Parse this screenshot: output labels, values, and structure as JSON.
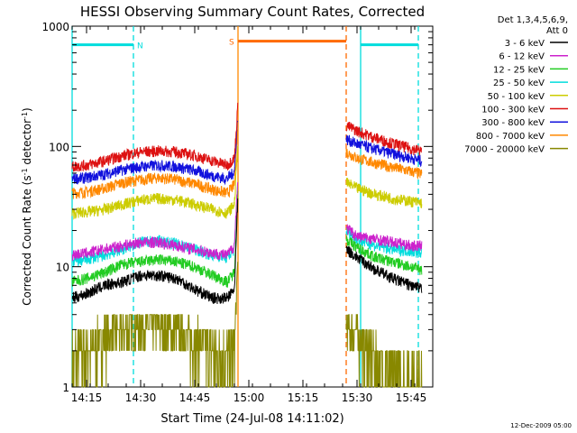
{
  "chart_data": {
    "type": "line",
    "title": "HESSI Observing Summary Count Rates, Corrected",
    "xlabel": "Start Time (24-Jul-08 14:11:02)",
    "ylabel_parts": [
      "Corrected Count Rate (s",
      "-1",
      " detector",
      "-1",
      ")"
    ],
    "y_scale": "log",
    "ylim": [
      1,
      1000
    ],
    "xlim": [
      "14:11",
      "15:51"
    ],
    "x_ticks": [
      "14:15",
      "14:30",
      "14:45",
      "15:00",
      "15:15",
      "15:30",
      "15:45"
    ],
    "y_ticks": [
      "1",
      "10",
      "100",
      "1000"
    ],
    "timestamp": "12-Dec-2009 05:00",
    "legend": {
      "placement": "right",
      "header_lines": [
        "Det 1,3,4,5,6,9,",
        "Att 0"
      ]
    },
    "gaps": [
      {
        "start": "14:57",
        "end": "15:27"
      }
    ],
    "series": [
      {
        "name": "3 - 6 keV",
        "color": "#000000",
        "points": [
          [
            "14:11",
            5.5
          ],
          [
            "14:15",
            6
          ],
          [
            "14:20",
            7
          ],
          [
            "14:25",
            7.5
          ],
          [
            "14:30",
            8.5
          ],
          [
            "14:35",
            8.5
          ],
          [
            "14:40",
            8
          ],
          [
            "14:45",
            6.5
          ],
          [
            "14:50",
            5.5
          ],
          [
            "14:54",
            5.5
          ],
          [
            "14:56",
            6.5
          ],
          [
            "14:57",
            40
          ],
          [
            "15:27",
            14
          ],
          [
            "15:30",
            12
          ],
          [
            "15:35",
            9.5
          ],
          [
            "15:40",
            8
          ],
          [
            "15:45",
            7
          ],
          [
            "15:48",
            6.5
          ]
        ]
      },
      {
        "name": "6 - 12 keV",
        "color": "#cc22cc",
        "points": [
          [
            "14:11",
            12.5
          ],
          [
            "14:15",
            13
          ],
          [
            "14:20",
            14
          ],
          [
            "14:25",
            15
          ],
          [
            "14:30",
            16
          ],
          [
            "14:35",
            16
          ],
          [
            "14:40",
            15
          ],
          [
            "14:45",
            14
          ],
          [
            "14:50",
            13
          ],
          [
            "14:54",
            12.5
          ],
          [
            "14:56",
            15
          ],
          [
            "14:57",
            60
          ],
          [
            "15:27",
            21
          ],
          [
            "15:30",
            18
          ],
          [
            "15:35",
            17
          ],
          [
            "15:40",
            16
          ],
          [
            "15:45",
            15
          ],
          [
            "15:48",
            15
          ]
        ]
      },
      {
        "name": "12 - 25 keV",
        "color": "#22cc22",
        "points": [
          [
            "14:11",
            7.5
          ],
          [
            "14:15",
            8
          ],
          [
            "14:20",
            9
          ],
          [
            "14:25",
            10.5
          ],
          [
            "14:30",
            11
          ],
          [
            "14:35",
            11.5
          ],
          [
            "14:40",
            11
          ],
          [
            "14:45",
            10
          ],
          [
            "14:50",
            8.5
          ],
          [
            "14:54",
            7.5
          ],
          [
            "14:56",
            9
          ],
          [
            "14:57",
            50
          ],
          [
            "15:27",
            17
          ],
          [
            "15:30",
            14.5
          ],
          [
            "15:35",
            12
          ],
          [
            "15:40",
            11
          ],
          [
            "15:45",
            10
          ],
          [
            "15:48",
            9.5
          ]
        ]
      },
      {
        "name": "25 - 50 keV",
        "color": "#00dddd",
        "points": [
          [
            "14:11",
            11
          ],
          [
            "14:15",
            11.5
          ],
          [
            "14:20",
            12.5
          ],
          [
            "14:25",
            14
          ],
          [
            "14:30",
            16
          ],
          [
            "14:35",
            16.5
          ],
          [
            "14:40",
            15.5
          ],
          [
            "14:45",
            14
          ],
          [
            "14:50",
            12.5
          ],
          [
            "14:54",
            12
          ],
          [
            "14:56",
            14
          ],
          [
            "14:57",
            55
          ],
          [
            "15:27",
            20
          ],
          [
            "15:30",
            17
          ],
          [
            "15:35",
            15
          ],
          [
            "15:40",
            14
          ],
          [
            "15:45",
            13.5
          ],
          [
            "15:48",
            13
          ]
        ]
      },
      {
        "name": "50 - 100 keV",
        "color": "#cccc00",
        "points": [
          [
            "14:11",
            28
          ],
          [
            "14:15",
            28.5
          ],
          [
            "14:20",
            30
          ],
          [
            "14:25",
            33
          ],
          [
            "14:30",
            36
          ],
          [
            "14:35",
            37
          ],
          [
            "14:40",
            36
          ],
          [
            "14:45",
            33
          ],
          [
            "14:50",
            30
          ],
          [
            "14:54",
            28
          ],
          [
            "14:56",
            33
          ],
          [
            "14:57",
            110
          ],
          [
            "15:27",
            50
          ],
          [
            "15:30",
            45
          ],
          [
            "15:35",
            40
          ],
          [
            "15:40",
            37
          ],
          [
            "15:45",
            35
          ],
          [
            "15:48",
            34
          ]
        ]
      },
      {
        "name": "100 - 300 keV",
        "color": "#dd1111",
        "points": [
          [
            "14:11",
            68
          ],
          [
            "14:15",
            70
          ],
          [
            "14:20",
            76
          ],
          [
            "14:25",
            84
          ],
          [
            "14:30",
            90
          ],
          [
            "14:35",
            92
          ],
          [
            "14:40",
            90
          ],
          [
            "14:45",
            84
          ],
          [
            "14:50",
            76
          ],
          [
            "14:54",
            70
          ],
          [
            "14:56",
            80
          ],
          [
            "14:57",
            230
          ],
          [
            "15:27",
            150
          ],
          [
            "15:30",
            135
          ],
          [
            "15:35",
            118
          ],
          [
            "15:40",
            106
          ],
          [
            "15:45",
            96
          ],
          [
            "15:48",
            92
          ]
        ]
      },
      {
        "name": "300 - 800 keV",
        "color": "#1111dd",
        "points": [
          [
            "14:11",
            54
          ],
          [
            "14:15",
            55
          ],
          [
            "14:20",
            59
          ],
          [
            "14:25",
            64
          ],
          [
            "14:30",
            68
          ],
          [
            "14:35",
            70
          ],
          [
            "14:40",
            68
          ],
          [
            "14:45",
            63
          ],
          [
            "14:50",
            57
          ],
          [
            "14:54",
            54
          ],
          [
            "14:56",
            62
          ],
          [
            "14:57",
            200
          ],
          [
            "15:27",
            115
          ],
          [
            "15:30",
            105
          ],
          [
            "15:35",
            95
          ],
          [
            "15:40",
            87
          ],
          [
            "15:45",
            80
          ],
          [
            "15:48",
            76
          ]
        ]
      },
      {
        "name": "800 - 7000 keV",
        "color": "#ff8800",
        "points": [
          [
            "14:11",
            41
          ],
          [
            "14:15",
            42
          ],
          [
            "14:20",
            45
          ],
          [
            "14:25",
            50
          ],
          [
            "14:30",
            53
          ],
          [
            "14:35",
            55
          ],
          [
            "14:40",
            53
          ],
          [
            "14:45",
            49
          ],
          [
            "14:50",
            44
          ],
          [
            "14:54",
            41
          ],
          [
            "14:56",
            48
          ],
          [
            "14:57",
            160
          ],
          [
            "15:27",
            90
          ],
          [
            "15:30",
            80
          ],
          [
            "15:35",
            73
          ],
          [
            "15:40",
            67
          ],
          [
            "15:45",
            62
          ],
          [
            "15:48",
            59
          ]
        ]
      },
      {
        "name": "7000 - 20000 keV",
        "color": "#888800",
        "points": [
          [
            "14:11",
            1.8
          ],
          [
            "14:15",
            2
          ],
          [
            "14:20",
            2.6
          ],
          [
            "14:25",
            3
          ],
          [
            "14:30",
            3.3
          ],
          [
            "14:35",
            3.2
          ],
          [
            "14:40",
            3
          ],
          [
            "14:45",
            2.4
          ],
          [
            "14:50",
            2
          ],
          [
            "14:54",
            1.7
          ],
          [
            "14:56",
            2.2
          ],
          [
            "14:57",
            12
          ],
          [
            "15:27",
            3.2
          ],
          [
            "15:30",
            2.8
          ],
          [
            "15:35",
            1.6
          ],
          [
            "15:40",
            1.2
          ],
          [
            "15:45",
            1
          ],
          [
            "15:48",
            1
          ]
        ]
      }
    ],
    "annotations": [
      {
        "label": "N",
        "color": "#00dddd",
        "start": "14:11",
        "end": "14:28",
        "y": 700
      },
      {
        "label": "S",
        "color": "#ff6a00",
        "start": "14:57",
        "end": "15:27",
        "y": 750
      },
      {
        "label": "",
        "color": "#00dddd",
        "start": "15:31",
        "end": "15:47",
        "y": 700
      }
    ],
    "vlines": [
      {
        "time": "14:11",
        "color": "#00dddd",
        "dash": false
      },
      {
        "time": "14:28",
        "color": "#00dddd",
        "dash": true
      },
      {
        "time": "14:57",
        "color": "#ff8800",
        "dash": false
      },
      {
        "time": "15:27",
        "color": "#ff6a00",
        "dash": true
      },
      {
        "time": "15:31",
        "color": "#00dddd",
        "dash": false
      },
      {
        "time": "15:47",
        "color": "#00dddd",
        "dash": true
      }
    ]
  }
}
